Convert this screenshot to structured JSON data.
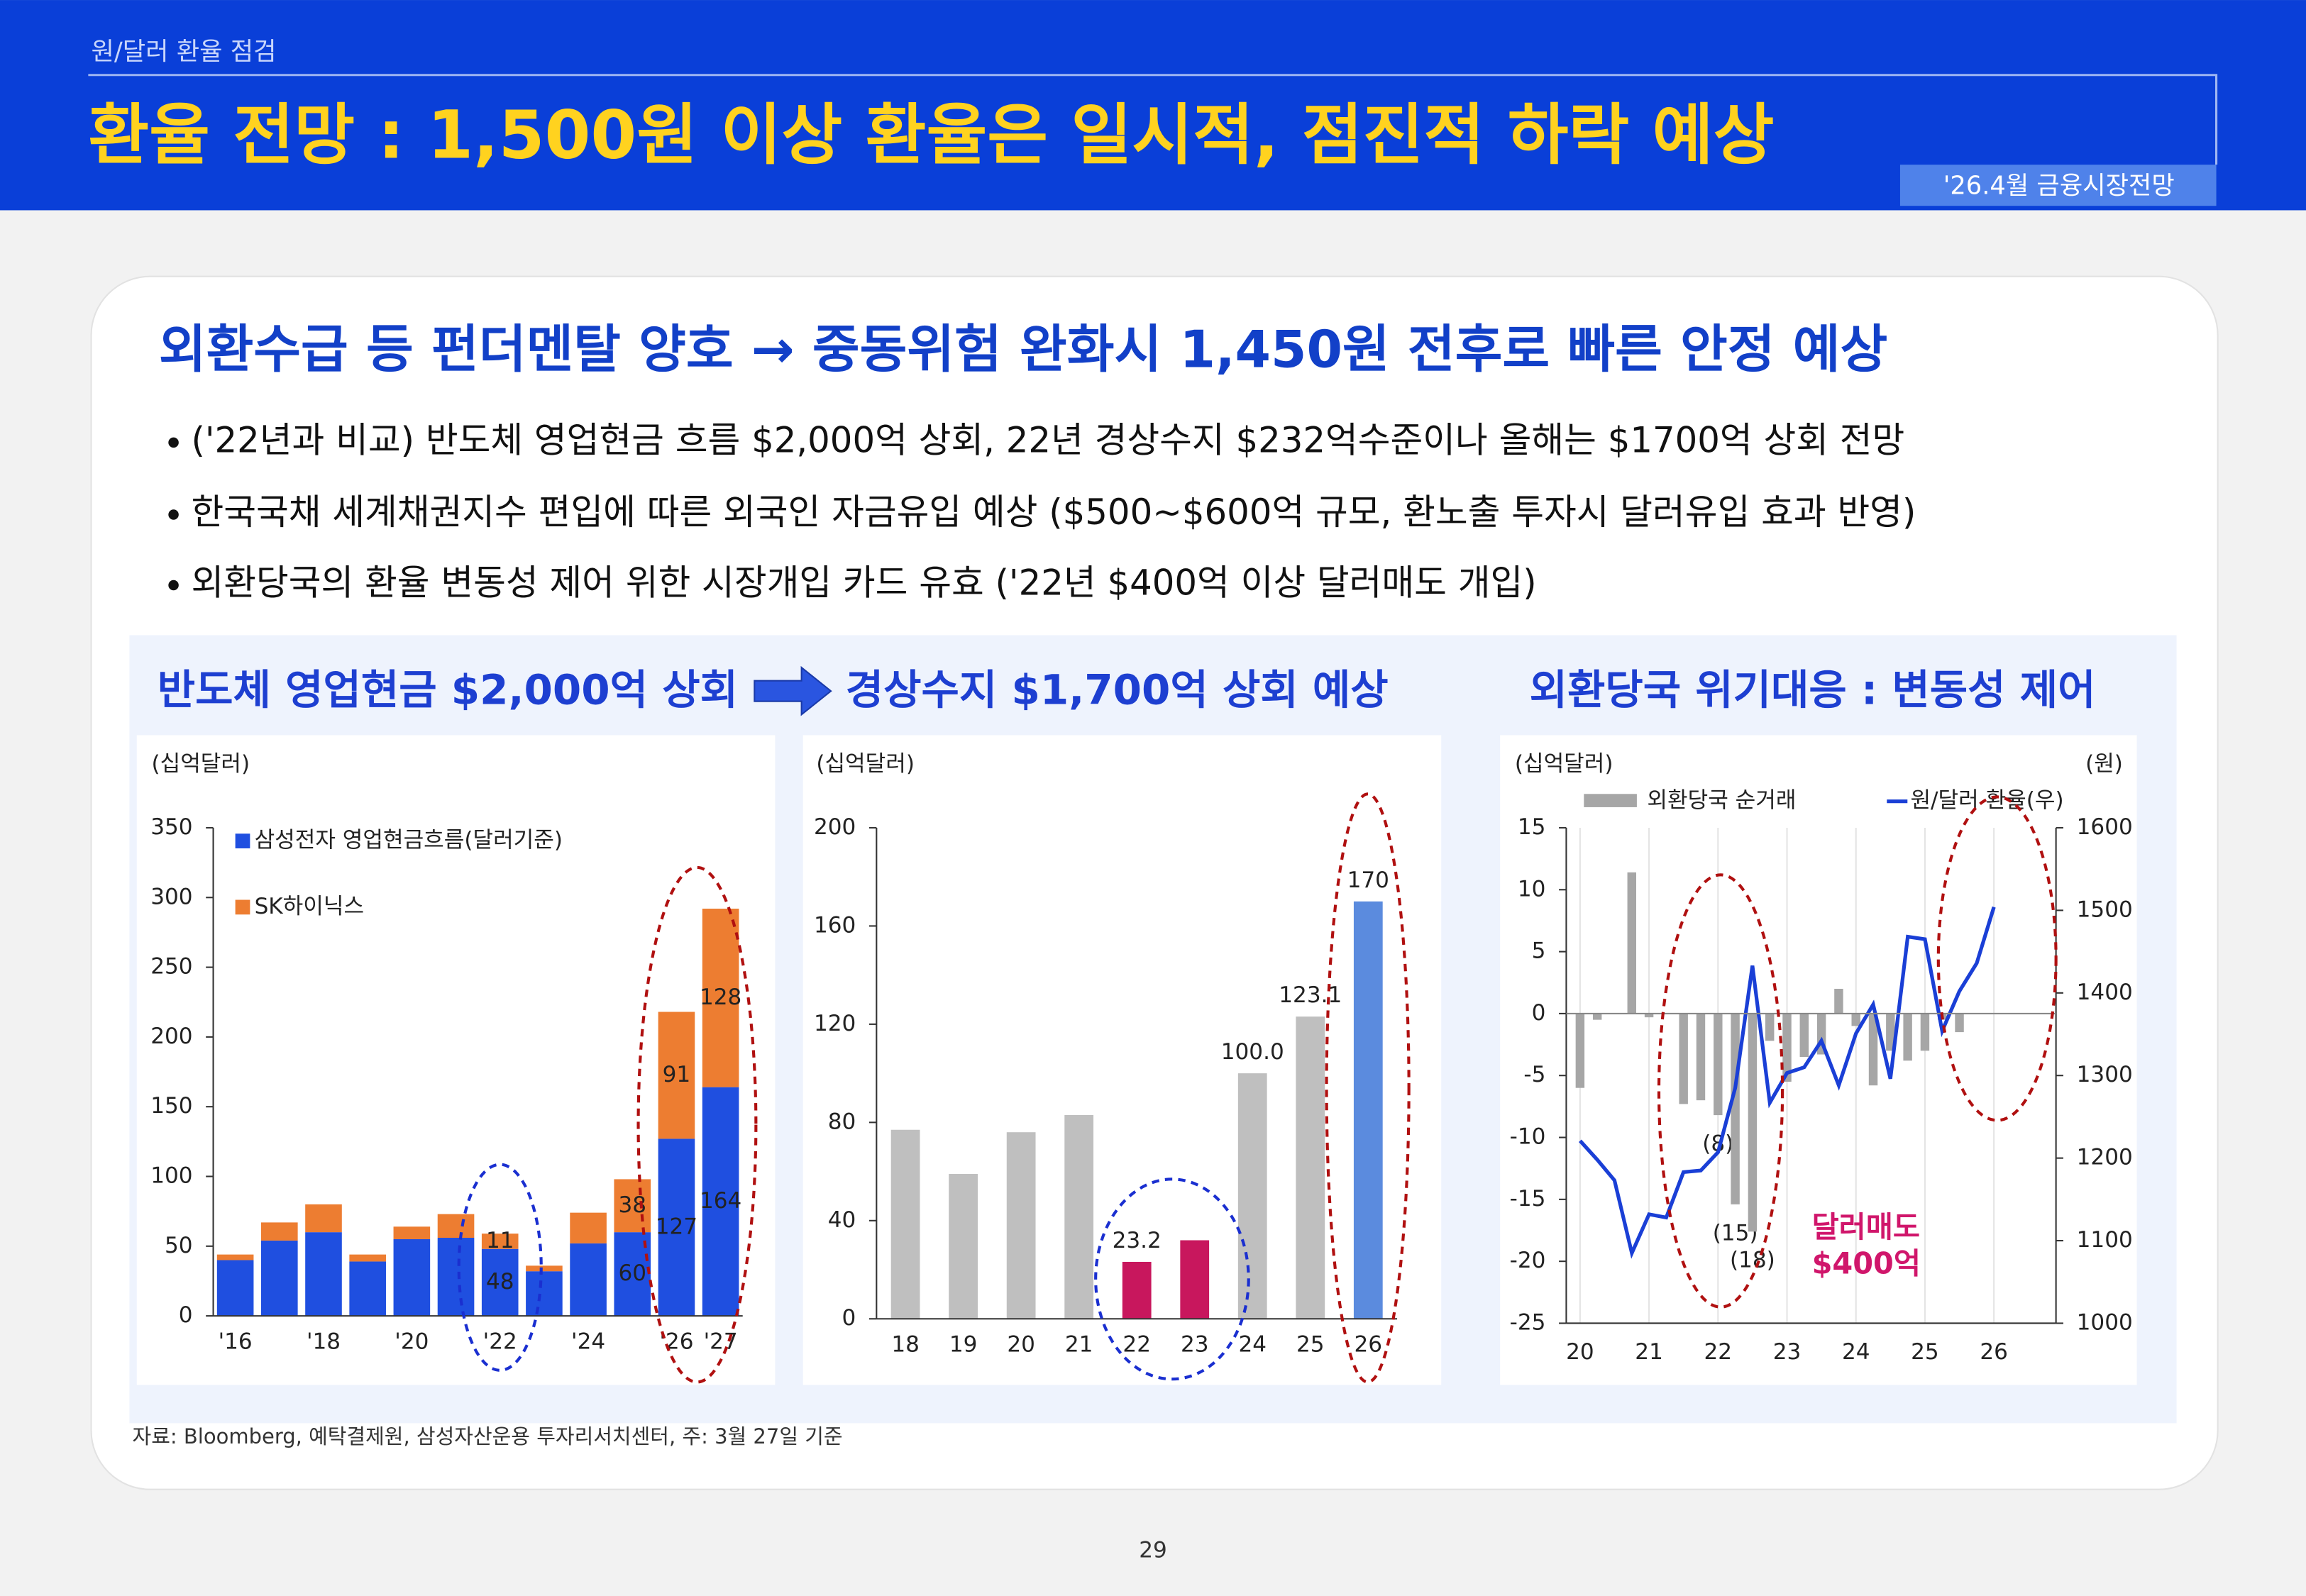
{
  "header": {
    "section": "원/달러 환율 점검",
    "title": "환율 전망 : 1,500원 이상 환율은 일시적, 점진적 하락 예상",
    "badge": "'26.4월 금융시장전망"
  },
  "headline": "외환수급 등 펀더멘탈 양호 → 중동위험 완화시 1,450원 전후로 빠른 안정 예상",
  "bullets": [
    "('22년과 비교) 반도체 영업현금 흐름 $2,000억 상회, 22년 경상수지 $232억수준이나 올해는 $1700억 상회 전망",
    "한국국채 세계채권지수 편입에 따른 외국인 자금유입 예상 ($500~$600억 규모, 환노출 투자시 달러유입 효과 반영)",
    "외환당국의 환율 변동성 제어 위한 시장개입 카드 유효 ('22년 $400억 이상 달러매도 개입)"
  ],
  "panel_titles": [
    "반도체 영업현금 $2,000억 상회",
    "경상수지 $1,700억 상회 예상",
    "외환당국 위기대응 : 변동성 제어"
  ],
  "chart_data": [
    {
      "type": "bar",
      "stacked": true,
      "y_unit_label": "(십억달러)",
      "categories": [
        "'16",
        null,
        "'18",
        null,
        "'20",
        null,
        "'22",
        null,
        "'24",
        null,
        "'26",
        "'27"
      ],
      "series": [
        {
          "name": "삼성전자 영업현금흐름(달러기준)",
          "color": "#1f4fe0",
          "values": [
            40,
            54,
            60,
            39,
            55,
            56,
            48,
            32,
            52,
            60,
            127,
            164
          ],
          "value_labels": [
            null,
            null,
            null,
            null,
            null,
            null,
            "48",
            null,
            null,
            "60",
            "127",
            "164"
          ]
        },
        {
          "name": "SK하이닉스",
          "color": "#ed7d31",
          "values": [
            4,
            13,
            20,
            5,
            9,
            17,
            11,
            4,
            22,
            38,
            91,
            128
          ],
          "value_labels": [
            null,
            null,
            null,
            null,
            null,
            null,
            "11",
            null,
            null,
            "38",
            "91",
            "128"
          ]
        }
      ],
      "ylim": [
        0,
        350
      ],
      "yticks": [
        0,
        50,
        100,
        150,
        200,
        250,
        300,
        350
      ],
      "legend": "upper left"
    },
    {
      "type": "bar",
      "y_unit_label": "(십억달러)",
      "categories": [
        "18",
        "19",
        "20",
        "21",
        "22",
        "23",
        "24",
        "25",
        "26"
      ],
      "values": [
        77,
        59,
        76,
        83,
        23.2,
        32,
        100,
        123.1,
        170
      ],
      "value_labels": [
        null,
        null,
        null,
        null,
        "23.2",
        null,
        "100.0",
        "123.1",
        "170"
      ],
      "colors": [
        "#bfbfbf",
        "#bfbfbf",
        "#bfbfbf",
        "#bfbfbf",
        "#c8175d",
        "#c8175d",
        "#bfbfbf",
        "#bfbfbf",
        "#5b8bde"
      ],
      "ylim": [
        0,
        200
      ],
      "yticks": [
        0,
        40,
        80,
        120,
        160,
        200
      ]
    },
    {
      "type": "combo",
      "y_unit_label": "(십억달러)",
      "y2_unit_label": "(원)",
      "x": [
        20,
        20.25,
        20.5,
        20.75,
        21,
        21.25,
        21.5,
        21.75,
        22,
        22.25,
        22.5,
        22.75,
        23,
        23.25,
        23.5,
        23.75,
        24,
        24.25,
        24.5,
        24.75,
        25,
        25.25,
        25.5,
        25.75,
        26
      ],
      "series": [
        {
          "name": "외환당국 순거래",
          "type": "bar",
          "color": "#a6a6a6",
          "values": [
            -6.0,
            -0.5,
            0,
            11.4,
            -0.3,
            0,
            -7.3,
            -7.0,
            -8.2,
            -15.4,
            -17.6,
            -2.2,
            -5.5,
            -3.5,
            -3.3,
            2.0,
            -1.0,
            -5.8,
            -3.0,
            -3.8,
            -3.0,
            -0.5,
            -1.5,
            0,
            null
          ],
          "value_labels": [
            null,
            null,
            null,
            null,
            null,
            null,
            null,
            null,
            "(8)",
            "(15)",
            "(18)",
            null,
            null,
            null,
            null,
            null,
            null,
            null,
            null,
            null,
            null,
            null,
            null,
            null,
            null
          ]
        },
        {
          "name": "원/달러 환율(우)",
          "type": "line",
          "axis": "y2",
          "color": "#1a3fd6",
          "values": [
            1221,
            1198,
            1173,
            1085,
            1132,
            1128,
            1183,
            1185,
            1207,
            1285,
            1433,
            1267,
            1303,
            1310,
            1342,
            1288,
            1351,
            1386,
            1296,
            1468,
            1465,
            1354,
            1402,
            1436,
            1504
          ]
        }
      ],
      "xlim": [
        19.8,
        26.9
      ],
      "xticks": [
        20,
        21,
        22,
        23,
        24,
        25,
        26
      ],
      "ylim": [
        -25,
        15
      ],
      "yticks": [
        -25,
        -20,
        -15,
        -10,
        -5,
        0,
        5,
        10,
        15
      ],
      "y2lim": [
        1000,
        1600
      ],
      "y2ticks": [
        1000,
        1100,
        1200,
        1300,
        1400,
        1500,
        1600
      ],
      "grid": "x",
      "legend": "top",
      "annotations": [
        "달러매도",
        "$400억"
      ]
    }
  ],
  "source": "자료: Bloomberg, 예탁결제원, 삼성자산운용 투자리서치센터, 주: 3월 27일 기준",
  "page_number": "29"
}
